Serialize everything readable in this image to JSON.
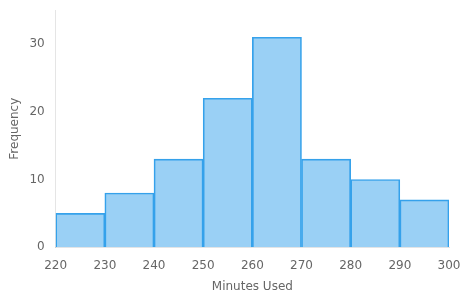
{
  "chart_data": {
    "type": "histogram",
    "bins": [
      220,
      230,
      240,
      250,
      260,
      270,
      280,
      290,
      300
    ],
    "values": [
      5,
      8,
      13,
      22,
      31,
      13,
      10,
      7
    ],
    "xlabel": "Minutes Used",
    "ylabel": "Frequency",
    "xlim": [
      220,
      300
    ],
    "ylim": [
      0,
      35
    ],
    "xticks": [
      220,
      230,
      240,
      250,
      260,
      270,
      280,
      290,
      300
    ],
    "yticks": [
      0,
      10,
      20,
      30
    ],
    "grid": false
  }
}
